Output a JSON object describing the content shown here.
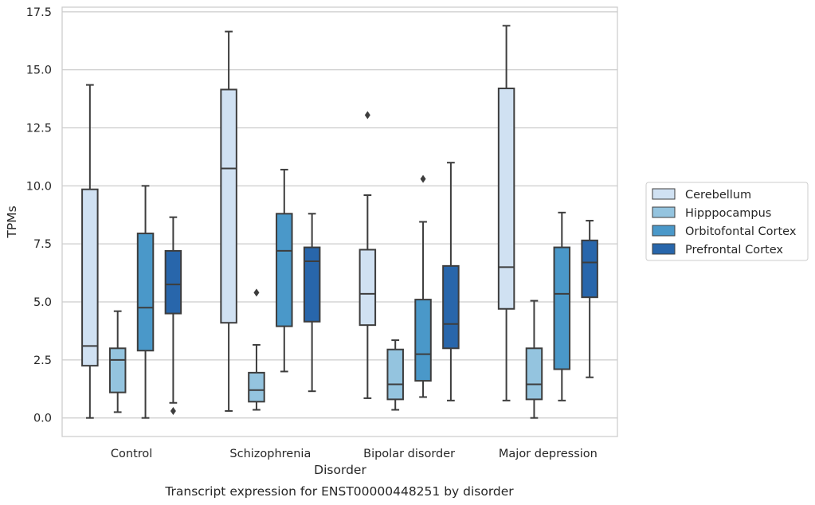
{
  "chart_data": {
    "type": "box",
    "caption": "Transcript expression for ENST00000448251 by disorder",
    "xlabel": "Disorder",
    "ylabel": "TPMs",
    "ylim": [
      -0.8,
      17.7
    ],
    "yticks": [
      "0.0",
      "2.5",
      "5.0",
      "7.5",
      "10.0",
      "12.5",
      "15.0",
      "17.5"
    ],
    "ytick_values": [
      0,
      2.5,
      5,
      7.5,
      10,
      12.5,
      15,
      17.5
    ],
    "grid": true,
    "legend_position": "right",
    "categories": [
      "Control",
      "Schizophrenia",
      "Bipolar disorder",
      "Major depression"
    ],
    "series": [
      {
        "name": "Cerebellum",
        "color": "#d0e1f2",
        "boxes": [
          {
            "whislo": 0.0,
            "q1": 2.25,
            "med": 3.1,
            "q3": 9.85,
            "whishi": 14.35,
            "fliers": []
          },
          {
            "whislo": 0.3,
            "q1": 4.1,
            "med": 10.75,
            "q3": 14.15,
            "whishi": 16.65,
            "fliers": []
          },
          {
            "whislo": 0.85,
            "q1": 4.0,
            "med": 5.35,
            "q3": 7.25,
            "whishi": 9.6,
            "fliers": [
              13.05
            ]
          },
          {
            "whislo": 0.75,
            "q1": 4.7,
            "med": 6.5,
            "q3": 14.2,
            "whishi": 16.9,
            "fliers": []
          }
        ]
      },
      {
        "name": "Hipppocampus",
        "color": "#94c4df",
        "boxes": [
          {
            "whislo": 0.25,
            "q1": 1.1,
            "med": 2.5,
            "q3": 3.0,
            "whishi": 4.6,
            "fliers": []
          },
          {
            "whislo": 0.35,
            "q1": 0.7,
            "med": 1.2,
            "q3": 1.95,
            "whishi": 3.15,
            "fliers": [
              5.4
            ]
          },
          {
            "whislo": 0.35,
            "q1": 0.8,
            "med": 1.45,
            "q3": 2.95,
            "whishi": 3.35,
            "fliers": []
          },
          {
            "whislo": 0.0,
            "q1": 0.8,
            "med": 1.45,
            "q3": 3.0,
            "whishi": 5.05,
            "fliers": []
          }
        ]
      },
      {
        "name": "Orbitofontal Cortex",
        "color": "#4a98c9",
        "boxes": [
          {
            "whislo": 0.0,
            "q1": 2.9,
            "med": 4.75,
            "q3": 7.95,
            "whishi": 10.0,
            "fliers": []
          },
          {
            "whislo": 2.0,
            "q1": 3.95,
            "med": 7.2,
            "q3": 8.8,
            "whishi": 10.7,
            "fliers": []
          },
          {
            "whislo": 0.9,
            "q1": 1.6,
            "med": 2.75,
            "q3": 5.1,
            "whishi": 8.45,
            "fliers": [
              10.3
            ]
          },
          {
            "whislo": 0.75,
            "q1": 2.1,
            "med": 5.35,
            "q3": 7.35,
            "whishi": 8.85,
            "fliers": []
          }
        ]
      },
      {
        "name": "Prefrontal Cortex",
        "color": "#2866ab",
        "boxes": [
          {
            "whislo": 0.65,
            "q1": 4.5,
            "med": 5.75,
            "q3": 7.2,
            "whishi": 8.65,
            "fliers": [
              0.3
            ]
          },
          {
            "whislo": 1.15,
            "q1": 4.15,
            "med": 6.75,
            "q3": 7.35,
            "whishi": 8.8,
            "fliers": []
          },
          {
            "whislo": 0.75,
            "q1": 3.0,
            "med": 4.05,
            "q3": 6.55,
            "whishi": 11.0,
            "fliers": []
          },
          {
            "whislo": 1.75,
            "q1": 5.2,
            "med": 6.7,
            "q3": 7.65,
            "whishi": 8.5,
            "fliers": []
          }
        ]
      }
    ]
  }
}
